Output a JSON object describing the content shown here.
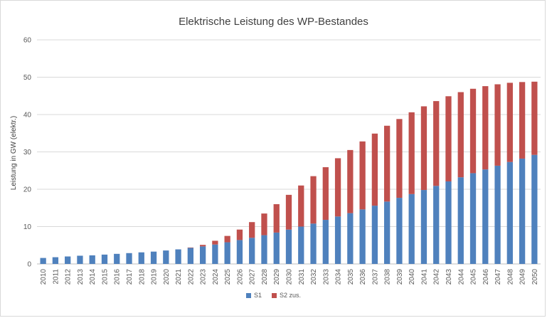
{
  "chart_data": {
    "type": "bar",
    "stacked": true,
    "title": "Elektrische Leistung des WP-Bestandes",
    "xlabel": "",
    "ylabel": "Leistung in GW (elektr.)",
    "ylim": [
      0,
      60
    ],
    "yticks": [
      0,
      10,
      20,
      30,
      40,
      50,
      60
    ],
    "grid": true,
    "legend_position": "bottom",
    "categories": [
      "2010",
      "2011",
      "2012",
      "2013",
      "2014",
      "2015",
      "2016",
      "2017",
      "2018",
      "2019",
      "2020",
      "2021",
      "2022",
      "2023",
      "2024",
      "2025",
      "2026",
      "2027",
      "2028",
      "2029",
      "2030",
      "2031",
      "2032",
      "2033",
      "2034",
      "2035",
      "2036",
      "2037",
      "2038",
      "2039",
      "2040",
      "2041",
      "2042",
      "2043",
      "2044",
      "2045",
      "2046",
      "2047",
      "2048",
      "2049",
      "2050"
    ],
    "series": [
      {
        "name": "S1",
        "color": "#4f81bd",
        "values": [
          1.6,
          1.8,
          2.0,
          2.2,
          2.3,
          2.5,
          2.7,
          2.9,
          3.1,
          3.3,
          3.6,
          3.9,
          4.3,
          4.7,
          5.2,
          5.8,
          6.4,
          7.0,
          7.7,
          8.4,
          9.2,
          10.0,
          10.8,
          11.8,
          12.7,
          13.6,
          14.6,
          15.6,
          16.7,
          17.7,
          18.7,
          19.8,
          20.9,
          22.1,
          23.2,
          24.3,
          25.3,
          26.3,
          27.3,
          28.2,
          29.2
        ]
      },
      {
        "name": "S2 zus.",
        "color": "#c0504d",
        "values": [
          0,
          0,
          0,
          0,
          0,
          0,
          0,
          0,
          0,
          0,
          0,
          0,
          0.1,
          0.4,
          1.0,
          1.7,
          2.8,
          4.2,
          5.8,
          7.6,
          9.3,
          11.0,
          12.7,
          14.1,
          15.6,
          16.9,
          18.2,
          19.3,
          20.3,
          21.1,
          21.9,
          22.4,
          22.7,
          22.8,
          22.8,
          22.6,
          22.3,
          21.8,
          21.2,
          20.5,
          19.6
        ]
      }
    ]
  }
}
